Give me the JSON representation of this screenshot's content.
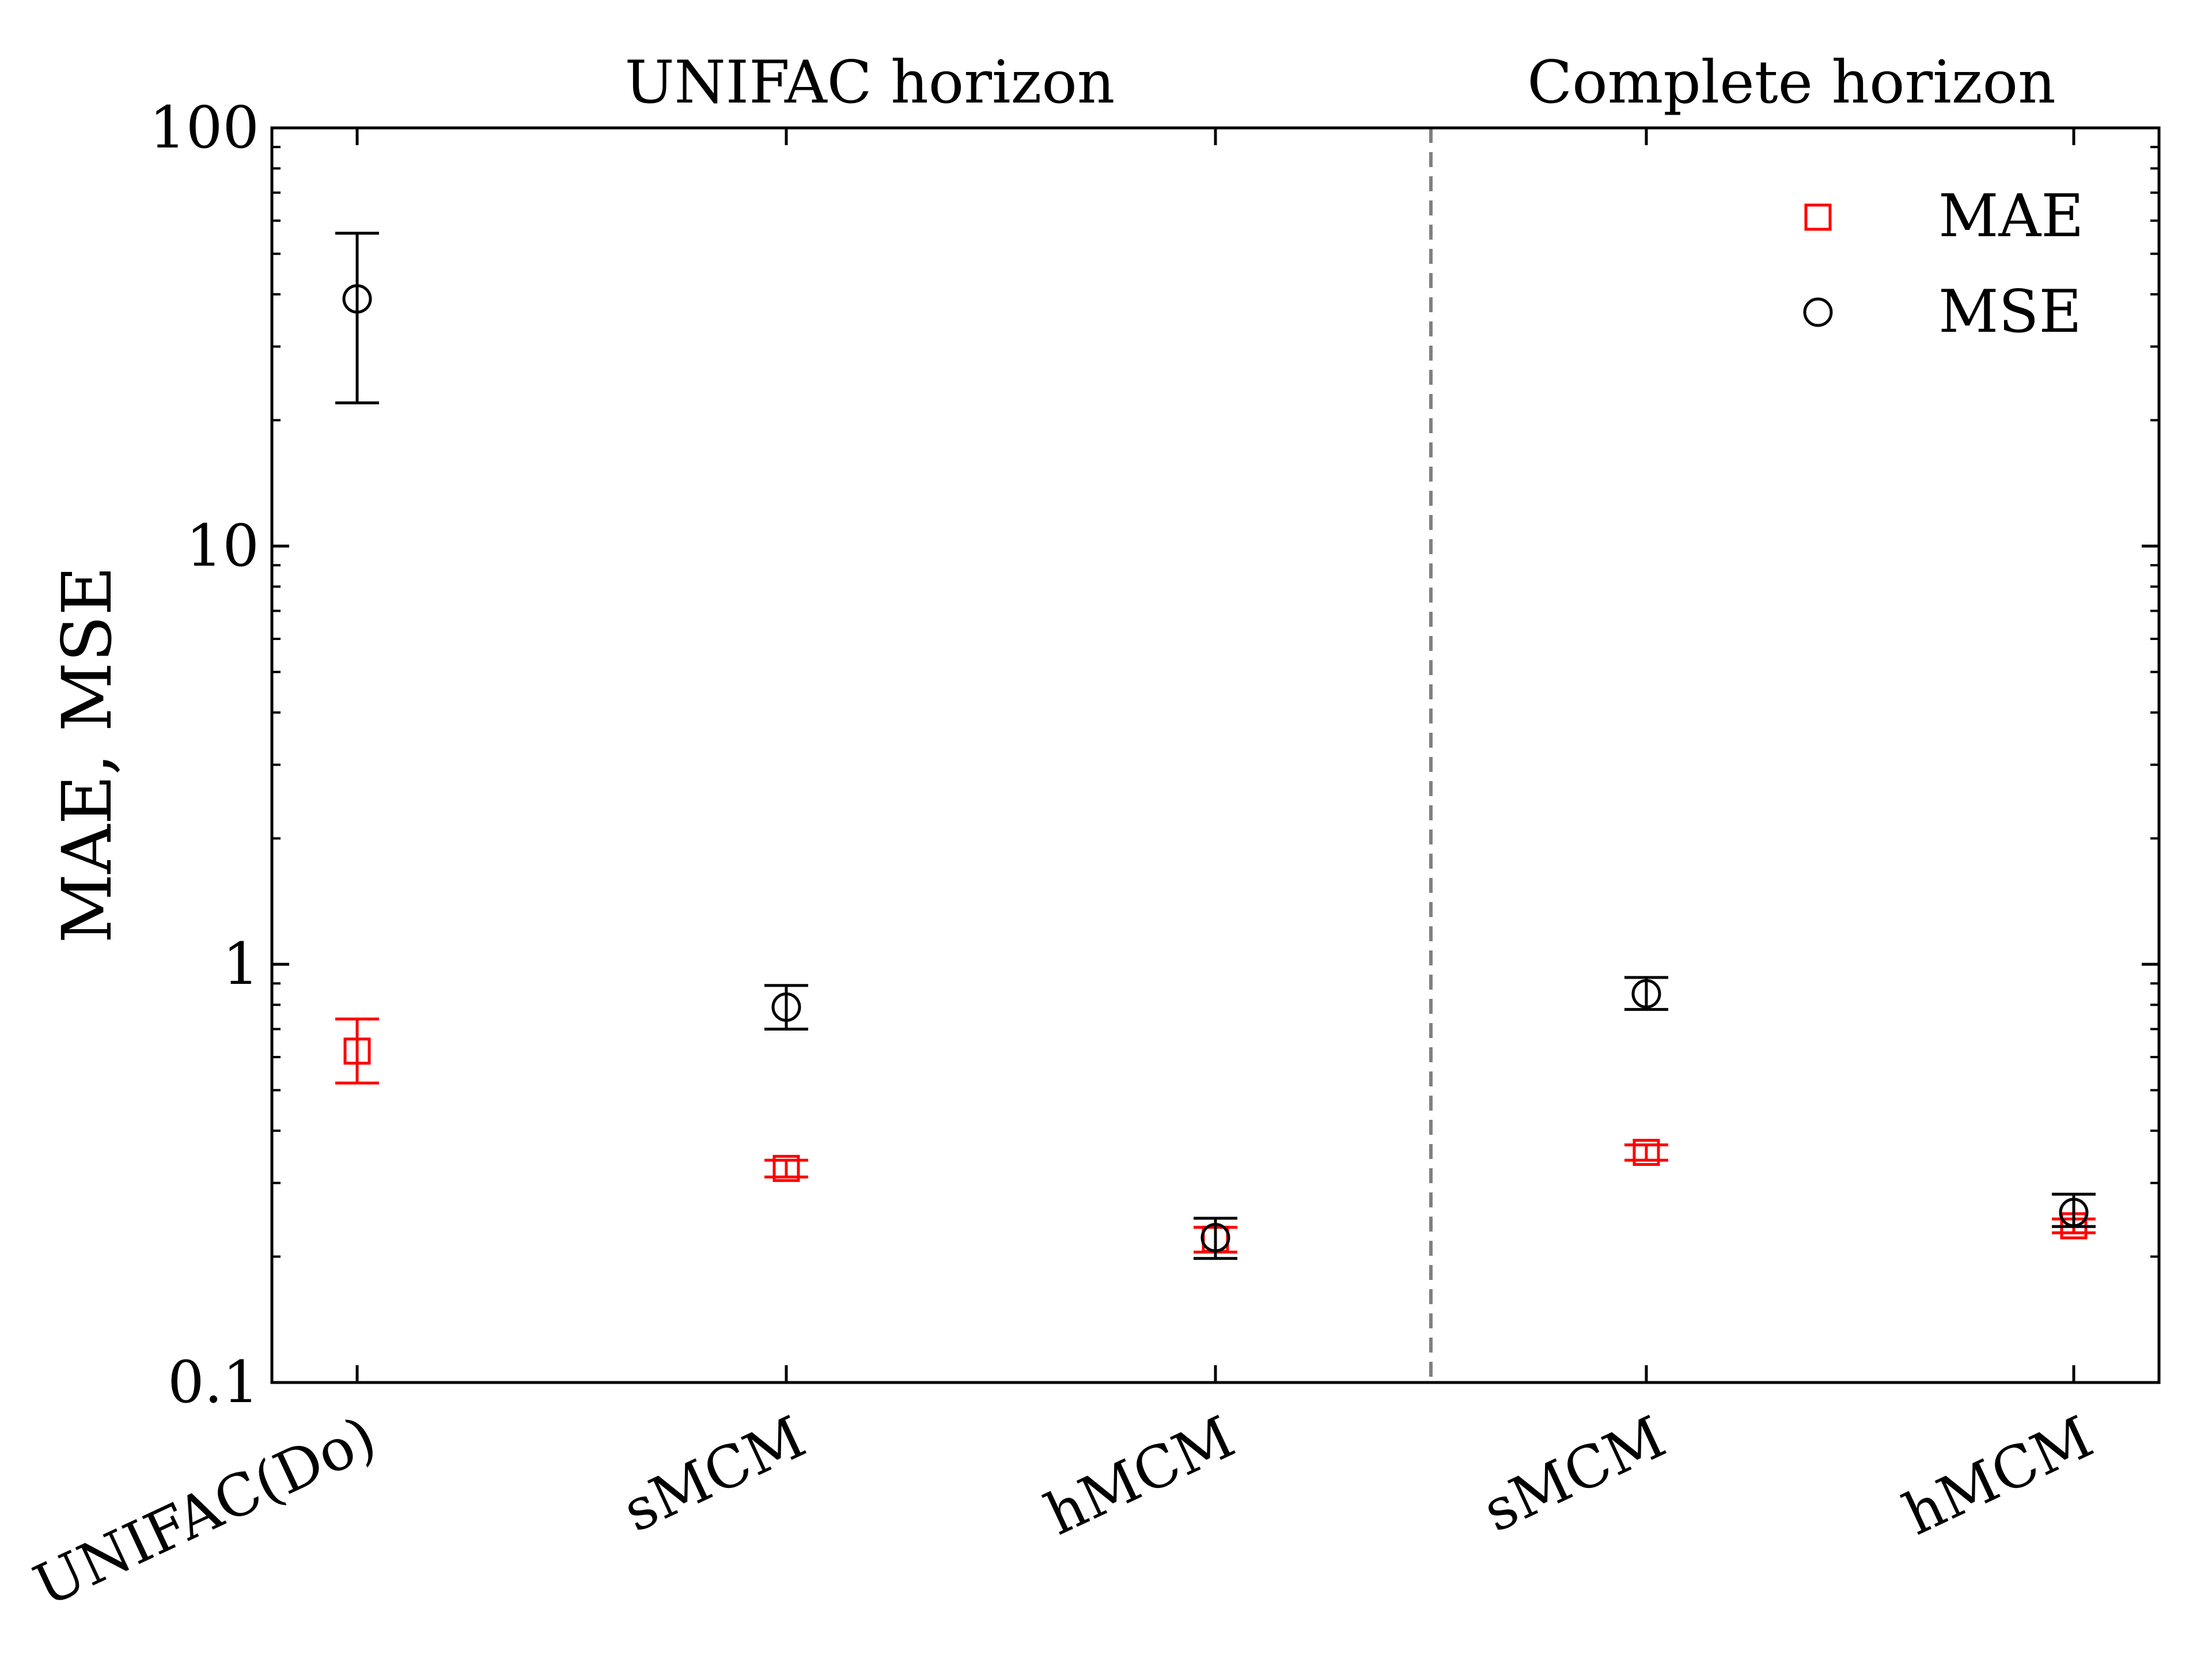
{
  "chart_data": {
    "type": "scatter",
    "categories": [
      "UNIFAC(Do)",
      "sMCM",
      "hMCM",
      "sMCM",
      "hMCM"
    ],
    "groups": [
      {
        "label": "UNIFAC horizon",
        "categories": [
          0,
          1,
          2
        ]
      },
      {
        "label": "Complete horizon",
        "categories": [
          3,
          4
        ]
      }
    ],
    "ylabel": "MAE, MSE",
    "xlabel": "",
    "yscale": "log",
    "ylim": [
      0.1,
      100
    ],
    "yticks": [
      {
        "value": 0.1,
        "label": "0.1"
      },
      {
        "value": 1,
        "label": "1"
      },
      {
        "value": 10,
        "label": "10"
      },
      {
        "value": 100,
        "label": "100"
      }
    ],
    "series": [
      {
        "name": "MAE",
        "marker": "square",
        "color": "#ff0000",
        "values": [
          0.62,
          0.325,
          0.22,
          0.355,
          0.237
        ],
        "err_low": [
          0.52,
          0.31,
          0.205,
          0.34,
          0.228
        ],
        "err_high": [
          0.74,
          0.34,
          0.235,
          0.37,
          0.246
        ]
      },
      {
        "name": "MSE",
        "marker": "circle",
        "color": "#000000",
        "values": [
          39,
          0.79,
          0.222,
          0.85,
          0.255
        ],
        "err_low": [
          22,
          0.7,
          0.198,
          0.78,
          0.236
        ],
        "err_high": [
          56,
          0.89,
          0.247,
          0.93,
          0.282
        ]
      }
    ],
    "legend_position": "top-right",
    "divider": {
      "between": [
        2,
        3
      ],
      "style": "dashed",
      "color": "#808080"
    },
    "grid": false
  }
}
